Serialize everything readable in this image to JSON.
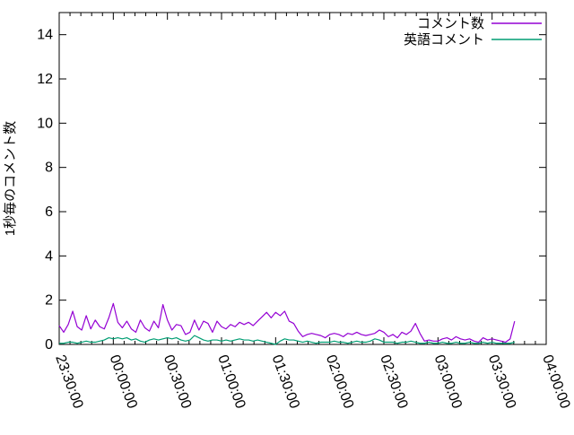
{
  "window": {
    "background": "#ffffff",
    "frame_color": "#000000",
    "text_color": "#000000"
  },
  "chart_data": {
    "type": "line",
    "title": "",
    "xlabel": "",
    "ylabel": "1秒毎のコメント数",
    "ylim": [
      0,
      15
    ],
    "y_ticks": [
      0,
      2,
      4,
      6,
      8,
      10,
      12,
      14
    ],
    "x_tick_labels": [
      "23:30:00",
      "00:00:00",
      "00:30:00",
      "01:00:00",
      "01:30:00",
      "02:00:00",
      "02:30:00",
      "03:00:00",
      "03:30:00",
      "04:00:00"
    ],
    "x_axis": {
      "start_label": "23:30:00",
      "end_label": "04:00:00",
      "total_minutes": 270,
      "major_tick_minutes": 30,
      "minor_tick_minutes": 6,
      "labels_rotation_deg": 70
    },
    "grid": false,
    "legend_position": "top-right-inside",
    "sample_start_minute": 0,
    "sample_step_minutes": 2.5,
    "series": [
      {
        "name": "コメント数",
        "color": "#9400d3",
        "values": [
          0.85,
          0.55,
          0.9,
          1.5,
          0.8,
          0.65,
          1.3,
          0.7,
          1.1,
          0.8,
          0.7,
          1.2,
          1.85,
          1.0,
          0.75,
          1.05,
          0.7,
          0.55,
          1.1,
          0.75,
          0.6,
          1.05,
          0.75,
          1.8,
          1.1,
          0.65,
          0.9,
          0.85,
          0.45,
          0.55,
          1.1,
          0.65,
          1.05,
          0.95,
          0.55,
          1.05,
          0.8,
          0.7,
          0.9,
          0.8,
          1.0,
          0.9,
          1.0,
          0.85,
          1.05,
          1.25,
          1.45,
          1.2,
          1.45,
          1.3,
          1.5,
          1.05,
          0.95,
          0.6,
          0.35,
          0.45,
          0.5,
          0.45,
          0.4,
          0.3,
          0.45,
          0.5,
          0.45,
          0.35,
          0.5,
          0.45,
          0.55,
          0.45,
          0.4,
          0.45,
          0.5,
          0.65,
          0.55,
          0.35,
          0.45,
          0.3,
          0.55,
          0.45,
          0.6,
          0.95,
          0.5,
          0.15,
          0.2,
          0.15,
          0.15,
          0.25,
          0.3,
          0.2,
          0.35,
          0.25,
          0.2,
          0.25,
          0.15,
          0.1,
          0.3,
          0.2,
          0.25,
          0.2,
          0.15,
          0.1,
          0.25,
          1.05
        ]
      },
      {
        "name": "英語コメント",
        "color": "#009e73",
        "values": [
          0.05,
          0.05,
          0.1,
          0.1,
          0.05,
          0.1,
          0.15,
          0.1,
          0.1,
          0.15,
          0.2,
          0.3,
          0.25,
          0.3,
          0.25,
          0.3,
          0.2,
          0.25,
          0.15,
          0.1,
          0.2,
          0.25,
          0.2,
          0.25,
          0.3,
          0.25,
          0.3,
          0.2,
          0.15,
          0.2,
          0.4,
          0.3,
          0.2,
          0.15,
          0.2,
          0.2,
          0.15,
          0.2,
          0.15,
          0.2,
          0.25,
          0.2,
          0.2,
          0.15,
          0.2,
          0.15,
          0.1,
          0.05,
          0.0,
          0.15,
          0.25,
          0.2,
          0.2,
          0.15,
          0.1,
          0.15,
          0.1,
          0.05,
          0.1,
          0.1,
          0.1,
          0.15,
          0.1,
          0.1,
          0.05,
          0.1,
          0.15,
          0.1,
          0.1,
          0.15,
          0.25,
          0.2,
          0.1,
          0.1,
          0.1,
          0.05,
          0.1,
          0.1,
          0.15,
          0.1,
          0.05,
          0.05,
          0.1,
          0.05,
          0.05,
          0.1,
          0.05,
          0.05,
          0.1,
          0.05,
          0.05,
          0.1,
          0.05,
          0.05,
          0.1,
          0.05,
          0.1,
          0.05,
          0.05,
          0.05,
          0.05,
          0.1
        ]
      }
    ]
  }
}
